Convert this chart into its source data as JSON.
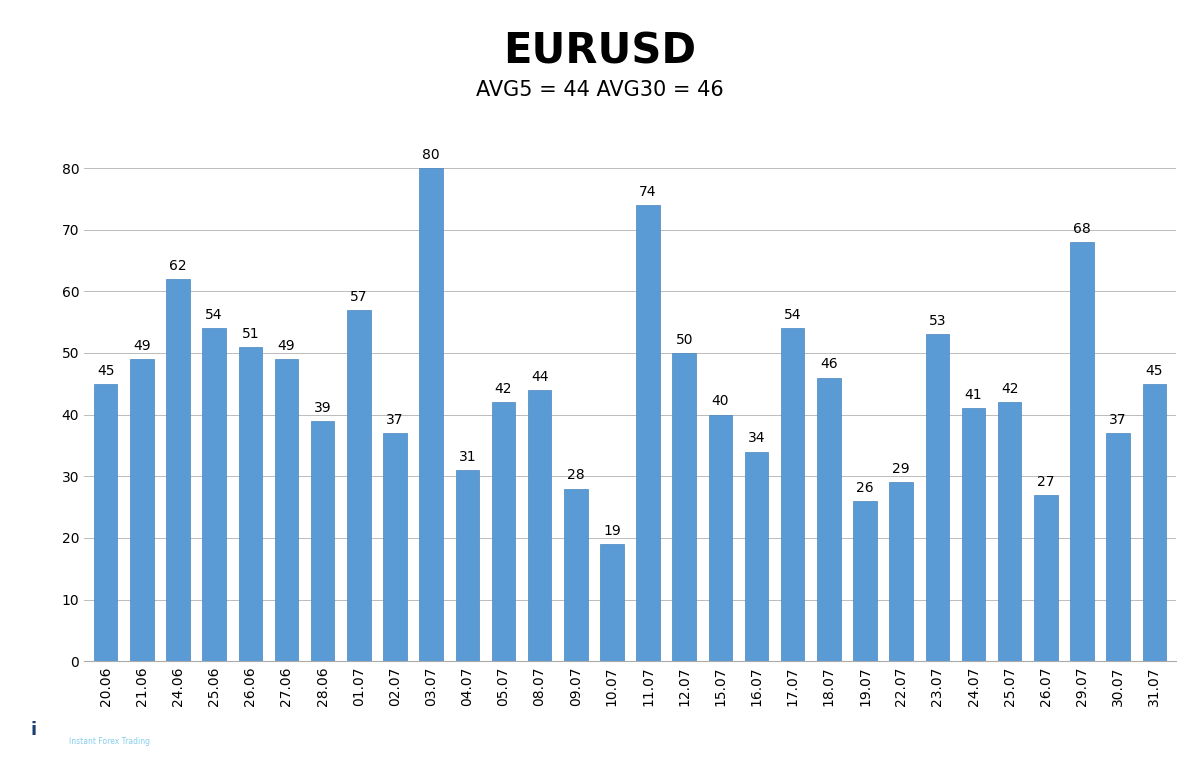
{
  "title": "EURUSD",
  "subtitle": "AVG5 = 44 AVG30 = 46",
  "categories": [
    "20.06",
    "21.06",
    "24.06",
    "25.06",
    "26.06",
    "27.06",
    "28.06",
    "01.07",
    "02.07",
    "03.07",
    "04.07",
    "05.07",
    "08.07",
    "09.07",
    "10.07",
    "11.07",
    "12.07",
    "15.07",
    "16.07",
    "17.07",
    "18.07",
    "19.07",
    "22.07",
    "23.07",
    "24.07",
    "25.07",
    "26.07",
    "29.07",
    "30.07",
    "31.07"
  ],
  "values": [
    45,
    49,
    62,
    54,
    51,
    49,
    39,
    57,
    37,
    80,
    31,
    42,
    44,
    28,
    19,
    74,
    50,
    40,
    34,
    54,
    46,
    26,
    29,
    53,
    41,
    42,
    27,
    68,
    37,
    45
  ],
  "bar_color": "#5B9BD5",
  "bar_edge_color": "#4A86BE",
  "background_color": "#FFFFFF",
  "grid_color": "#BBBBBB",
  "ylim": [
    0,
    90
  ],
  "yticks": [
    0,
    10,
    20,
    30,
    40,
    50,
    60,
    70,
    80
  ],
  "title_fontsize": 30,
  "subtitle_fontsize": 15,
  "tick_fontsize": 10,
  "value_fontsize": 10
}
